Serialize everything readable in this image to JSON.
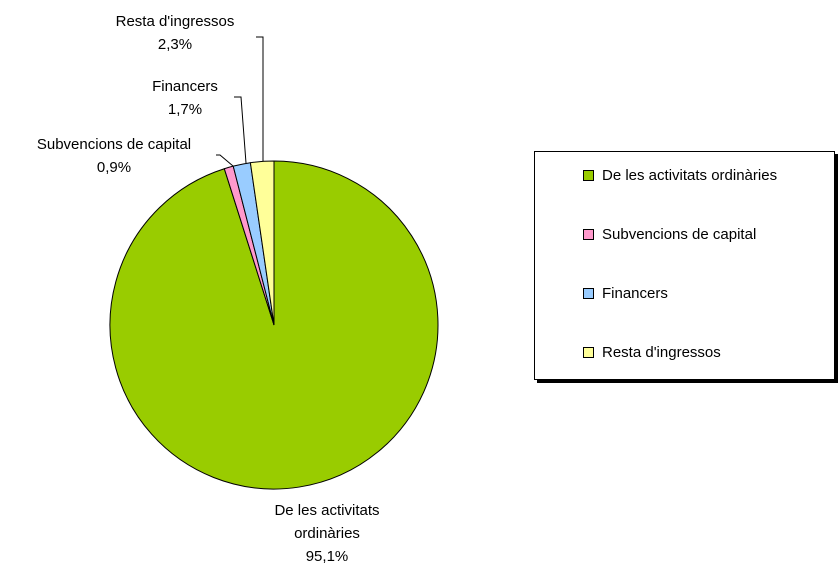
{
  "chart_data": {
    "type": "pie",
    "categories": [
      "De les activitats ordinàries",
      "Subvencions de capital",
      "Financers",
      "Resta d'ingressos"
    ],
    "values": [
      95.1,
      0.9,
      1.7,
      2.3
    ],
    "value_labels": [
      "95,1%",
      "0,9%",
      "1,7%",
      "2,3%"
    ],
    "colors": [
      "#99cc00",
      "#ff99cc",
      "#99ccff",
      "#ffff99"
    ],
    "legend": "right"
  }
}
